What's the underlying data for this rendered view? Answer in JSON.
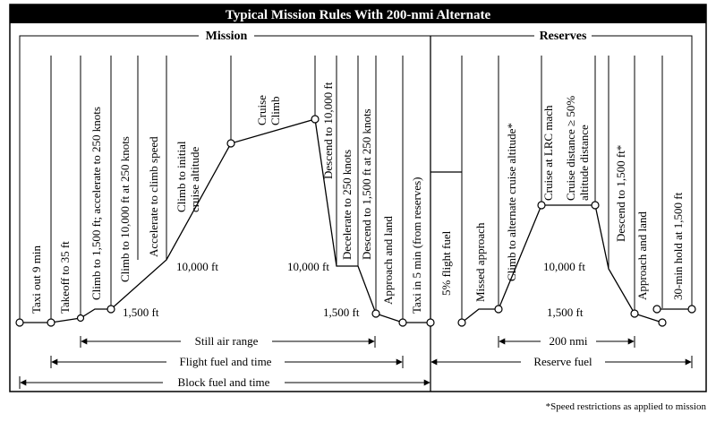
{
  "title": "Typical Mission Rules With 200-nmi Alternate",
  "sections": {
    "mission": "Mission",
    "reserves": "Reserves"
  },
  "phases": {
    "taxi_out": "Taxi out 9 min",
    "takeoff": "Takeoff to 35 ft",
    "climb_1500": "Climb to 1,500 ft; accelerate to 250 knots",
    "climb_10000": "Climb to 10,000 ft at 250 knots",
    "accelerate": "Accelerate to climb speed",
    "climb_initial_1": "Climb to initial",
    "climb_initial_2": "cruise altitude",
    "cruise_climb_1": "Cruise",
    "cruise_climb_2": "Climb",
    "descend_10000": "Descend to 10,000 ft",
    "decelerate": "Decelerate to 250 knots",
    "descend_1500": "Descend to 1,500 ft at 250 knots",
    "approach_land": "Approach and land",
    "taxi_in": "Taxi in 5 min (from reserves)",
    "flight_fuel_pct": "5% flight fuel",
    "missed_approach": "Missed approach",
    "climb_alternate": "Climb to alternate cruise altitude*",
    "cruise_lrc": "Cruise at LRC mach",
    "cruise_dist_1": "Cruise distance ≥ 50%",
    "cruise_dist_2": "altitude distance",
    "descend_reserve": "Descend to 1,500 ft*",
    "approach_land_reserve": "Approach and land",
    "hold": "30-min hold at 1,500 ft"
  },
  "altitude_labels": {
    "mission_1500": "1,500 ft",
    "mission_10000_left": "10,000 ft",
    "mission_10000_right": "10,000 ft",
    "mission_1500_right": "1,500 ft",
    "reserve_10000": "10,000 ft",
    "reserve_1500": "1,500 ft"
  },
  "ranges": {
    "still_air": "Still air range",
    "flight_fuel": "Flight fuel and time",
    "block_fuel": "Block fuel and time",
    "alternate_distance": "200 nmi",
    "reserve_fuel": "Reserve fuel"
  },
  "footnote": "*Speed restrictions as applied to mission"
}
